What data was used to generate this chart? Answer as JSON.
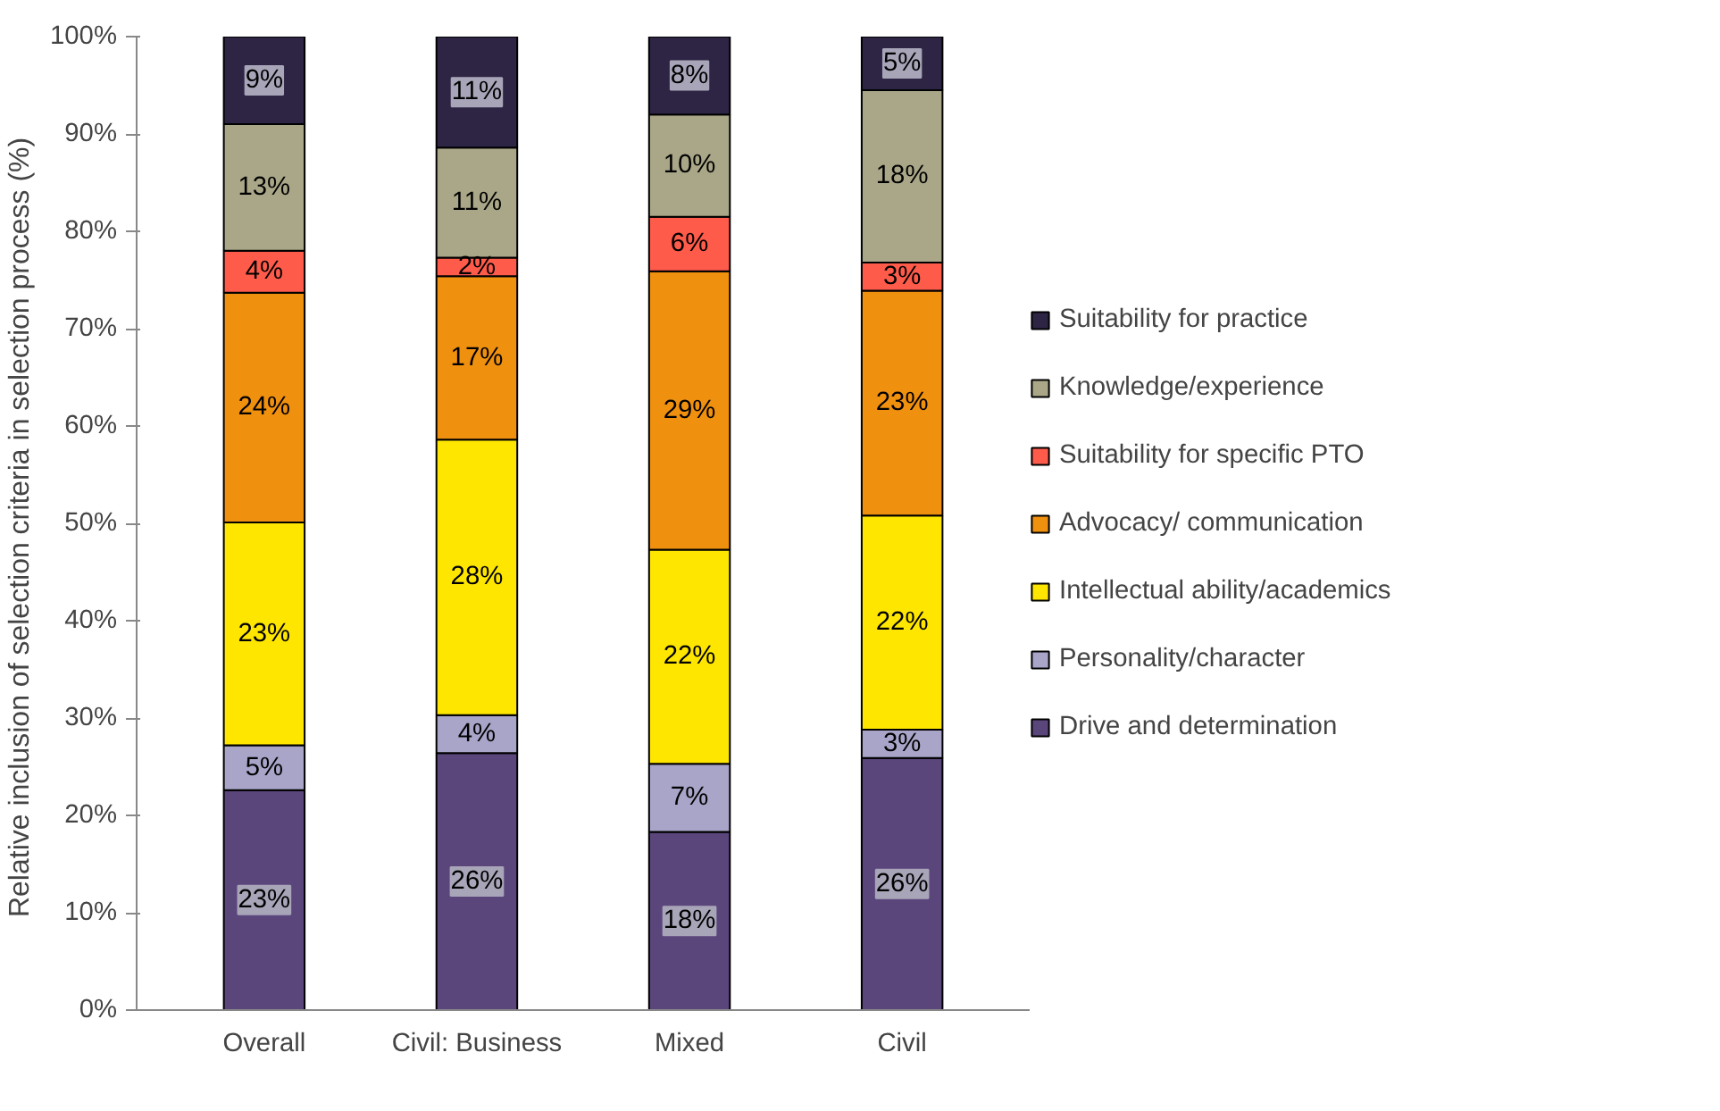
{
  "chart_data": {
    "type": "bar",
    "stacked": true,
    "ylabel": "Relative  inclusion of selection criteria in selection process (%)",
    "categories": [
      "Overall",
      "Civil: Business",
      "Mixed",
      "Civil"
    ],
    "ylim": [
      0,
      100
    ],
    "yticks": [
      {
        "value": 0,
        "label": "0%"
      },
      {
        "value": 10,
        "label": "10%"
      },
      {
        "value": 20,
        "label": "20%"
      },
      {
        "value": 30,
        "label": "30%"
      },
      {
        "value": 40,
        "label": "40%"
      },
      {
        "value": 50,
        "label": "50%"
      },
      {
        "value": 60,
        "label": "60%"
      },
      {
        "value": 70,
        "label": "70%"
      },
      {
        "value": 80,
        "label": "80%"
      },
      {
        "value": 90,
        "label": "90%"
      },
      {
        "value": 100,
        "label": "100%"
      }
    ],
    "grid": false,
    "legend": "right",
    "series": [
      {
        "name": "Drive and determination",
        "color": "#5b467c",
        "values": [
          22.6,
          26.4,
          18.3,
          25.9
        ],
        "value_labels": [
          "23%",
          "26%",
          "18%",
          "26%"
        ]
      },
      {
        "name": "Personality/character",
        "color": "#a9a5c9",
        "values": [
          4.6,
          3.9,
          7.0,
          2.9
        ],
        "value_labels": [
          "5%",
          "4%",
          "7%",
          "3%"
        ]
      },
      {
        "name": "Intellectual ability/academics",
        "color": "#ffe600",
        "values": [
          22.9,
          28.3,
          22.0,
          22.0
        ],
        "value_labels": [
          "23%",
          "28%",
          "22%",
          "22%"
        ]
      },
      {
        "name": "Advocacy/ communication",
        "color": "#f0900f",
        "values": [
          23.6,
          16.8,
          28.6,
          23.1
        ],
        "value_labels": [
          "24%",
          "17%",
          "29%",
          "23%"
        ]
      },
      {
        "name": "Suitability for specific PTO",
        "color": "#ff5b4b",
        "values": [
          4.3,
          1.9,
          5.6,
          2.9
        ],
        "value_labels": [
          "4%",
          "2%",
          "6%",
          "3%"
        ]
      },
      {
        "name": "Knowledge/experience",
        "color": "#aaa788",
        "values": [
          13.0,
          11.3,
          10.5,
          17.7
        ],
        "value_labels": [
          "13%",
          "11%",
          "10%",
          "18%"
        ]
      },
      {
        "name": "Suitability for practice",
        "color": "#2e2544",
        "values": [
          9.0,
          11.4,
          8.0,
          5.5
        ],
        "value_labels": [
          "9%",
          "11%",
          "8%",
          "5%"
        ]
      }
    ]
  }
}
